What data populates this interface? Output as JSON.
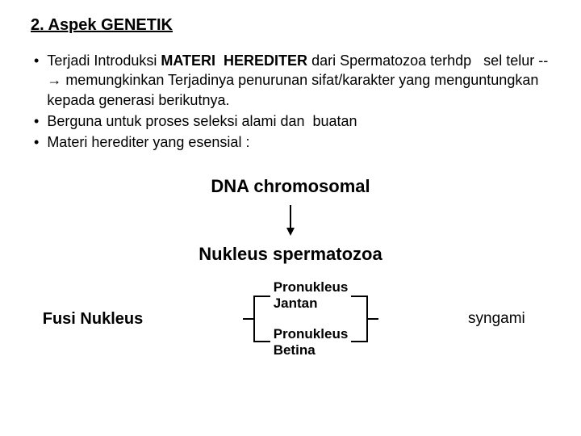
{
  "heading": "2. Aspek GENETIK",
  "bullets": [
    {
      "html": "Terjadi Introduksi <b>MATERI&nbsp;&nbsp;HEREDITER</b> dari Spermatozoa terhdp&nbsp;&nbsp;&nbsp;sel telur --→ memungkinkan Terjadinya penurunan sifat/karakter yang menguntungkan kepada generasi berikutnya."
    },
    {
      "html": "Berguna untuk proses seleksi alami dan&nbsp;&nbsp;buatan"
    },
    {
      "html": "Materi herediter yang esensial :"
    }
  ],
  "flow": {
    "step1": "DNA chromosomal",
    "step2": "Nukleus spermatozoa"
  },
  "fusi": "Fusi Nukleus",
  "pron1": "Pronukleus Jantan",
  "pron2": "Pronukleus Betina",
  "syngami": "syngami",
  "colors": {
    "text": "#000000",
    "bg": "#ffffff",
    "line": "#000000"
  },
  "arrow": {
    "length": 36,
    "head": 6
  },
  "fork": {
    "width": 40,
    "height": 70,
    "armHalf": 25
  }
}
